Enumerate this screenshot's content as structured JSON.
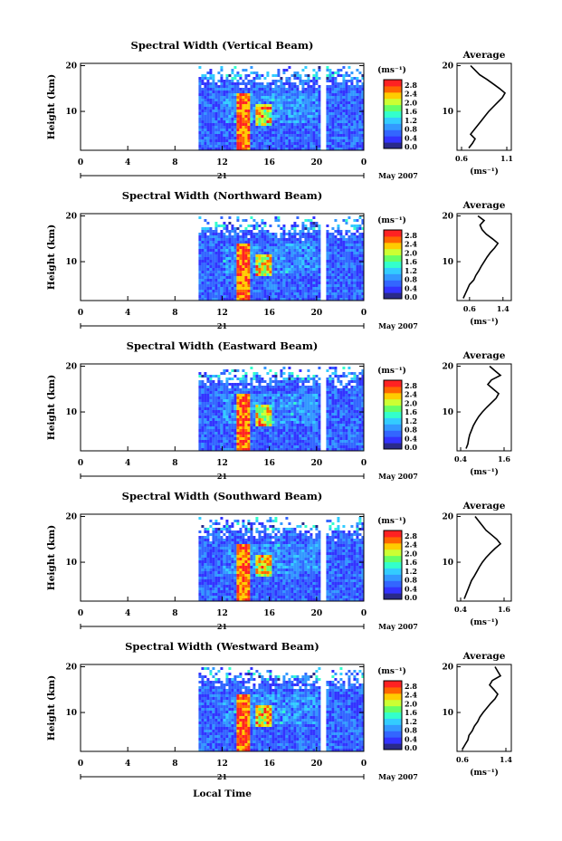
{
  "figure": {
    "xaxis_label": "Local Time",
    "month_label": "May 2007",
    "day_label": "21"
  },
  "colorbar": {
    "unit_label": "(ms⁻¹)",
    "ticks": [
      "2.8",
      "2.4",
      "2.0",
      "1.6",
      "1.2",
      "0.8",
      "0.4",
      "0.0"
    ],
    "colors": [
      "#2a2a8a",
      "#3333ff",
      "#3366ff",
      "#3399ff",
      "#33ccff",
      "#33ffcc",
      "#66ff66",
      "#ccff33",
      "#ffcc00",
      "#ff6600",
      "#ff2222"
    ]
  },
  "chart_data": [
    {
      "type": "heatmap",
      "title": "Spectral Width (Vertical Beam)",
      "ylabel": "Height (km)",
      "xlabel": "Local Time",
      "x_ticks": [
        "0",
        "4",
        "8",
        "12",
        "16",
        "20",
        "0"
      ],
      "x_range_hours": [
        0,
        24
      ],
      "y_ticks": [
        "20",
        "10"
      ],
      "y_range_km": [
        1.5,
        20.5
      ],
      "data_start_hour": 10,
      "profile": {
        "title": "Average",
        "xlabel": "(ms⁻¹)",
        "x_ticks": [
          "0.6",
          "1.1"
        ],
        "x_range": [
          0.55,
          1.15
        ],
        "heights_km": [
          2,
          3,
          4,
          5,
          6,
          7,
          8,
          9,
          10,
          11,
          12,
          13,
          14,
          15,
          16,
          17,
          18,
          19,
          20
        ],
        "values": [
          0.68,
          0.72,
          0.75,
          0.7,
          0.74,
          0.78,
          0.82,
          0.86,
          0.9,
          0.95,
          1.0,
          1.05,
          1.08,
          1.02,
          0.95,
          0.88,
          0.8,
          0.75,
          0.7
        ]
      }
    },
    {
      "type": "heatmap",
      "title": "Spectral Width (Northward Beam)",
      "ylabel": "Height (km)",
      "xlabel": "Local Time",
      "x_ticks": [
        "0",
        "4",
        "8",
        "12",
        "16",
        "20",
        "0"
      ],
      "x_range_hours": [
        0,
        24
      ],
      "y_ticks": [
        "20",
        "10"
      ],
      "y_range_km": [
        1.5,
        20.5
      ],
      "data_start_hour": 10,
      "profile": {
        "title": "Average",
        "xlabel": "(ms⁻¹)",
        "x_ticks": [
          "0.6",
          "1.4"
        ],
        "x_range": [
          0.3,
          1.6
        ],
        "heights_km": [
          2,
          3,
          4,
          5,
          6,
          7,
          8,
          9,
          10,
          11,
          12,
          13,
          14,
          15,
          16,
          17,
          18,
          19,
          20
        ],
        "values": [
          0.45,
          0.5,
          0.55,
          0.6,
          0.7,
          0.75,
          0.82,
          0.88,
          0.95,
          1.02,
          1.1,
          1.2,
          1.28,
          1.15,
          1.0,
          0.9,
          0.85,
          0.95,
          0.8
        ]
      }
    },
    {
      "type": "heatmap",
      "title": "Spectral Width (Eastward Beam)",
      "ylabel": "Height (km)",
      "xlabel": "Local Time",
      "x_ticks": [
        "0",
        "4",
        "8",
        "12",
        "16",
        "20",
        "0"
      ],
      "x_range_hours": [
        0,
        24
      ],
      "y_ticks": [
        "20",
        "10"
      ],
      "y_range_km": [
        1.5,
        20.5
      ],
      "data_start_hour": 10,
      "profile": {
        "title": "Average",
        "xlabel": "(ms⁻¹)",
        "x_ticks": [
          "0.4",
          "1.6"
        ],
        "x_range": [
          0.3,
          1.8
        ],
        "heights_km": [
          2,
          3,
          4,
          5,
          6,
          7,
          8,
          9,
          10,
          11,
          12,
          13,
          14,
          15,
          16,
          17,
          18,
          19,
          20
        ],
        "values": [
          0.55,
          0.6,
          0.62,
          0.65,
          0.7,
          0.75,
          0.82,
          0.9,
          1.0,
          1.12,
          1.25,
          1.38,
          1.45,
          1.3,
          1.15,
          1.25,
          1.5,
          1.35,
          1.2
        ]
      }
    },
    {
      "type": "heatmap",
      "title": "Spectral Width (Southward Beam)",
      "ylabel": "Height (km)",
      "xlabel": "Local Time",
      "x_ticks": [
        "0",
        "4",
        "8",
        "12",
        "16",
        "20",
        "0"
      ],
      "x_range_hours": [
        0,
        24
      ],
      "y_ticks": [
        "20",
        "10"
      ],
      "y_range_km": [
        1.5,
        20.5
      ],
      "data_start_hour": 10,
      "profile": {
        "title": "Average",
        "xlabel": "(ms⁻¹)",
        "x_ticks": [
          "0.4",
          "1.6"
        ],
        "x_range": [
          0.3,
          1.8
        ],
        "heights_km": [
          2,
          3,
          4,
          5,
          6,
          7,
          8,
          9,
          10,
          11,
          12,
          13,
          14,
          15,
          16,
          17,
          18,
          19,
          20
        ],
        "values": [
          0.5,
          0.55,
          0.6,
          0.65,
          0.7,
          0.78,
          0.85,
          0.92,
          1.0,
          1.1,
          1.22,
          1.35,
          1.5,
          1.4,
          1.25,
          1.1,
          1.0,
          0.9,
          0.8
        ]
      }
    },
    {
      "type": "heatmap",
      "title": "Spectral Width (Westward Beam)",
      "ylabel": "Height (km)",
      "xlabel": "Local Time",
      "x_ticks": [
        "0",
        "4",
        "8",
        "12",
        "16",
        "20",
        "0"
      ],
      "x_range_hours": [
        0,
        24
      ],
      "y_ticks": [
        "20",
        "10"
      ],
      "y_range_km": [
        1.5,
        20.5
      ],
      "data_start_hour": 10,
      "profile": {
        "title": "Average",
        "xlabel": "(ms⁻¹)",
        "x_ticks": [
          "0.6",
          "1.4"
        ],
        "x_range": [
          0.5,
          1.5
        ],
        "heights_km": [
          2,
          3,
          4,
          5,
          6,
          7,
          8,
          9,
          10,
          11,
          12,
          13,
          14,
          15,
          16,
          17,
          18,
          19,
          20
        ],
        "values": [
          0.6,
          0.65,
          0.7,
          0.72,
          0.78,
          0.82,
          0.88,
          0.92,
          0.98,
          1.05,
          1.12,
          1.2,
          1.25,
          1.18,
          1.1,
          1.15,
          1.3,
          1.25,
          1.2
        ]
      }
    }
  ]
}
